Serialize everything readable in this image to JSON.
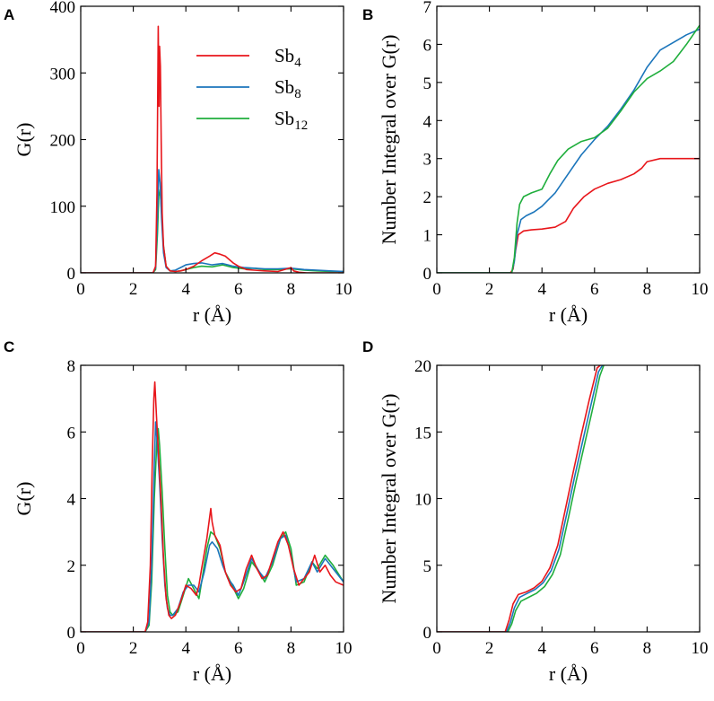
{
  "series_colors": {
    "Sb4": "#e8161b",
    "Sb8": "#1b75bb",
    "Sb12": "#1fae3c"
  },
  "chart_data": [
    {
      "id": "A",
      "type": "line",
      "panel_label": "A",
      "xlabel": "r (Å)",
      "ylabel": "G(r)",
      "xlim": [
        0,
        10
      ],
      "ylim": [
        0,
        400
      ],
      "xticks": [
        0,
        2,
        4,
        6,
        8,
        10
      ],
      "yticks": [
        0,
        100,
        200,
        300,
        400
      ],
      "legend": {
        "position": "top-right",
        "entries": [
          {
            "base": "Sb",
            "sub": "4",
            "key": "Sb4"
          },
          {
            "base": "Sb",
            "sub": "8",
            "key": "Sb8"
          },
          {
            "base": "Sb",
            "sub": "12",
            "key": "Sb12"
          }
        ]
      },
      "series": [
        {
          "name": "Sb12",
          "key": "Sb12",
          "x": [
            0,
            2.6,
            2.75,
            2.85,
            2.92,
            2.97,
            3.02,
            3.08,
            3.15,
            3.25,
            3.4,
            3.6,
            3.8,
            4.0,
            4.3,
            4.6,
            5.0,
            5.4,
            5.8,
            6.2,
            6.6,
            7.0,
            7.5,
            8.0,
            8.5,
            9.0,
            9.5,
            10
          ],
          "y": [
            0,
            0,
            0,
            5,
            60,
            115,
            125,
            90,
            40,
            10,
            3,
            2,
            3,
            5,
            8,
            10,
            9,
            12,
            8,
            6,
            7,
            5,
            5,
            6,
            4,
            3,
            2,
            2
          ]
        },
        {
          "name": "Sb8",
          "key": "Sb8",
          "x": [
            0,
            2.6,
            2.75,
            2.85,
            2.92,
            2.97,
            3.02,
            3.08,
            3.15,
            3.25,
            3.4,
            3.6,
            3.8,
            4.0,
            4.3,
            4.6,
            5.0,
            5.4,
            5.8,
            6.2,
            6.6,
            7.0,
            7.5,
            8.0,
            8.5,
            9.0,
            9.5,
            10
          ],
          "y": [
            0,
            0,
            0,
            8,
            90,
            155,
            135,
            80,
            30,
            8,
            3,
            4,
            8,
            12,
            14,
            15,
            12,
            14,
            10,
            8,
            7,
            6,
            6,
            7,
            5,
            4,
            3,
            2
          ]
        },
        {
          "name": "Sb4",
          "key": "Sb4",
          "x": [
            0,
            2.6,
            2.75,
            2.85,
            2.9,
            2.95,
            2.98,
            3.0,
            3.03,
            3.06,
            3.1,
            3.15,
            3.25,
            3.4,
            3.6,
            3.8,
            4.0,
            4.3,
            4.6,
            4.9,
            5.1,
            5.3,
            5.5,
            5.8,
            6.0,
            6.3,
            6.6,
            7.0,
            7.5,
            8.0,
            8.1,
            8.3,
            8.6,
            9.0,
            10
          ],
          "y": [
            0,
            0,
            0,
            10,
            120,
            370,
            250,
            340,
            310,
            200,
            90,
            40,
            10,
            3,
            2,
            3,
            5,
            10,
            18,
            25,
            30,
            28,
            25,
            15,
            10,
            5,
            4,
            3,
            2,
            8,
            3,
            1,
            0,
            0,
            0
          ]
        }
      ]
    },
    {
      "id": "B",
      "type": "line",
      "panel_label": "B",
      "xlabel": "r (Å)",
      "ylabel": "Number Integral over G(r)",
      "xlim": [
        0,
        10
      ],
      "ylim": [
        0,
        7
      ],
      "xticks": [
        0,
        2,
        4,
        6,
        8,
        10
      ],
      "yticks": [
        0,
        1,
        2,
        3,
        4,
        5,
        6,
        7
      ],
      "series": [
        {
          "name": "Sb4",
          "key": "Sb4",
          "x": [
            0,
            2.8,
            2.9,
            3.0,
            3.1,
            3.3,
            3.6,
            4.0,
            4.5,
            4.9,
            5.2,
            5.6,
            6.0,
            6.5,
            7.0,
            7.5,
            7.8,
            8.0,
            8.5,
            9.0,
            10
          ],
          "y": [
            0,
            0,
            0.1,
            0.6,
            1.0,
            1.1,
            1.13,
            1.15,
            1.2,
            1.35,
            1.7,
            2.0,
            2.2,
            2.35,
            2.45,
            2.6,
            2.75,
            2.92,
            3.0,
            3.0,
            3.0
          ]
        },
        {
          "name": "Sb8",
          "key": "Sb8",
          "x": [
            0,
            2.85,
            2.95,
            3.05,
            3.2,
            3.4,
            3.7,
            4.0,
            4.5,
            5.0,
            5.5,
            6.0,
            6.5,
            7.0,
            7.5,
            8.0,
            8.5,
            9.0,
            9.5,
            10
          ],
          "y": [
            0,
            0,
            0.3,
            1.0,
            1.4,
            1.5,
            1.6,
            1.75,
            2.1,
            2.6,
            3.1,
            3.5,
            3.85,
            4.3,
            4.8,
            5.4,
            5.85,
            6.05,
            6.25,
            6.4
          ]
        },
        {
          "name": "Sb12",
          "key": "Sb12",
          "x": [
            0,
            2.85,
            2.95,
            3.05,
            3.15,
            3.3,
            3.6,
            4.0,
            4.3,
            4.6,
            5.0,
            5.5,
            6.0,
            6.5,
            7.0,
            7.5,
            8.0,
            8.5,
            9.0,
            9.5,
            10
          ],
          "y": [
            0,
            0,
            0.4,
            1.3,
            1.8,
            2.0,
            2.1,
            2.2,
            2.6,
            2.95,
            3.25,
            3.45,
            3.55,
            3.8,
            4.25,
            4.75,
            5.1,
            5.3,
            5.55,
            6.0,
            6.5
          ]
        }
      ]
    },
    {
      "id": "C",
      "type": "line",
      "panel_label": "C",
      "xlabel": "r (Å)",
      "ylabel": "G(r)",
      "xlim": [
        0,
        10
      ],
      "ylim": [
        0,
        8
      ],
      "xticks": [
        0,
        2,
        4,
        6,
        8,
        10
      ],
      "yticks": [
        0,
        2,
        4,
        6,
        8
      ],
      "series": [
        {
          "name": "Sb12",
          "key": "Sb12",
          "x": [
            0,
            2.45,
            2.6,
            2.7,
            2.8,
            2.9,
            2.95,
            3.0,
            3.1,
            3.2,
            3.3,
            3.4,
            3.5,
            3.7,
            3.9,
            4.1,
            4.3,
            4.5,
            4.6,
            4.8,
            4.95,
            5.1,
            5.3,
            5.5,
            5.7,
            6.0,
            6.2,
            6.5,
            6.8,
            7.0,
            7.3,
            7.6,
            7.8,
            8.0,
            8.2,
            8.5,
            8.8,
            9.0,
            9.3,
            9.6,
            10
          ],
          "y": [
            0,
            0,
            0.2,
            1.5,
            4.0,
            5.8,
            6.1,
            5.6,
            4.2,
            2.5,
            1.1,
            0.6,
            0.5,
            0.6,
            1.1,
            1.6,
            1.3,
            1.0,
            1.5,
            2.5,
            3.0,
            2.9,
            2.5,
            1.8,
            1.5,
            1.0,
            1.3,
            2.1,
            1.8,
            1.5,
            2.0,
            2.8,
            3.0,
            2.5,
            1.4,
            1.5,
            2.1,
            1.9,
            2.3,
            2.0,
            1.5
          ]
        },
        {
          "name": "Sb8",
          "key": "Sb8",
          "x": [
            0,
            2.45,
            2.6,
            2.7,
            2.8,
            2.85,
            2.9,
            3.0,
            3.1,
            3.2,
            3.3,
            3.4,
            3.5,
            3.7,
            3.9,
            4.1,
            4.3,
            4.5,
            4.7,
            4.9,
            5.0,
            5.2,
            5.4,
            5.6,
            5.8,
            6.0,
            6.2,
            6.5,
            6.8,
            7.0,
            7.3,
            7.6,
            7.8,
            8.0,
            8.2,
            8.5,
            8.8,
            9.0,
            9.3,
            9.6,
            10
          ],
          "y": [
            0,
            0,
            0.3,
            2.0,
            5.0,
            6.3,
            5.8,
            4.5,
            2.8,
            1.4,
            0.7,
            0.5,
            0.5,
            0.7,
            1.2,
            1.4,
            1.4,
            1.2,
            1.8,
            2.6,
            2.7,
            2.5,
            2.0,
            1.6,
            1.4,
            1.1,
            1.5,
            2.2,
            1.8,
            1.6,
            2.1,
            2.8,
            2.9,
            2.3,
            1.5,
            1.6,
            2.1,
            1.8,
            2.2,
            1.9,
            1.5
          ]
        },
        {
          "name": "Sb4",
          "key": "Sb4",
          "x": [
            0,
            2.45,
            2.55,
            2.65,
            2.72,
            2.78,
            2.82,
            2.85,
            2.88,
            2.95,
            3.05,
            3.15,
            3.25,
            3.35,
            3.45,
            3.6,
            3.8,
            4.0,
            4.2,
            4.4,
            4.5,
            4.6,
            4.8,
            4.95,
            5.0,
            5.1,
            5.3,
            5.5,
            5.7,
            5.9,
            6.1,
            6.3,
            6.5,
            6.7,
            6.9,
            7.1,
            7.3,
            7.5,
            7.7,
            7.9,
            8.1,
            8.3,
            8.5,
            8.7,
            8.9,
            9.1,
            9.3,
            9.5,
            9.7,
            10
          ],
          "y": [
            0,
            0,
            0.3,
            2.0,
            5.0,
            7.0,
            7.5,
            7.0,
            6.5,
            5.5,
            4.0,
            2.2,
            1.0,
            0.5,
            0.4,
            0.5,
            0.9,
            1.4,
            1.3,
            1.1,
            1.4,
            1.9,
            2.8,
            3.7,
            3.3,
            2.9,
            2.6,
            1.8,
            1.4,
            1.2,
            1.3,
            1.9,
            2.3,
            1.9,
            1.6,
            1.7,
            2.2,
            2.7,
            3.0,
            2.6,
            1.9,
            1.4,
            1.6,
            1.8,
            2.3,
            1.8,
            2.0,
            1.7,
            1.5,
            1.4
          ]
        }
      ]
    },
    {
      "id": "D",
      "type": "line",
      "panel_label": "D",
      "xlabel": "r (Å)",
      "ylabel": "Number Integral over G(r)",
      "xlim": [
        0,
        10
      ],
      "ylim": [
        0,
        20
      ],
      "xticks": [
        0,
        2,
        4,
        6,
        8,
        10
      ],
      "yticks": [
        0,
        5,
        10,
        15,
        20
      ],
      "series": [
        {
          "name": "Sb12",
          "key": "Sb12",
          "x": [
            0,
            2.7,
            2.85,
            3.0,
            3.2,
            3.5,
            3.8,
            4.1,
            4.4,
            4.7,
            5.0,
            5.3,
            5.6,
            5.9,
            6.2,
            6.35
          ],
          "y": [
            0,
            0,
            0.6,
            1.6,
            2.3,
            2.6,
            2.9,
            3.4,
            4.3,
            5.8,
            8.5,
            11.3,
            13.9,
            16.5,
            19.2,
            20
          ]
        },
        {
          "name": "Sb8",
          "key": "Sb8",
          "x": [
            0,
            2.65,
            2.8,
            2.95,
            3.15,
            3.45,
            3.75,
            4.05,
            4.35,
            4.65,
            4.95,
            5.25,
            5.55,
            5.85,
            6.15,
            6.3
          ],
          "y": [
            0,
            0,
            0.7,
            1.8,
            2.6,
            2.9,
            3.2,
            3.7,
            4.6,
            6.2,
            8.9,
            11.7,
            14.3,
            16.9,
            19.5,
            20
          ]
        },
        {
          "name": "Sb4",
          "key": "Sb4",
          "x": [
            0,
            2.6,
            2.75,
            2.9,
            3.1,
            3.4,
            3.7,
            4.0,
            4.3,
            4.6,
            4.9,
            5.2,
            5.5,
            5.8,
            6.1,
            6.22
          ],
          "y": [
            0,
            0,
            0.9,
            2.1,
            2.8,
            3.0,
            3.3,
            3.8,
            4.8,
            6.5,
            9.3,
            12.1,
            14.8,
            17.4,
            19.8,
            20
          ]
        }
      ]
    }
  ]
}
